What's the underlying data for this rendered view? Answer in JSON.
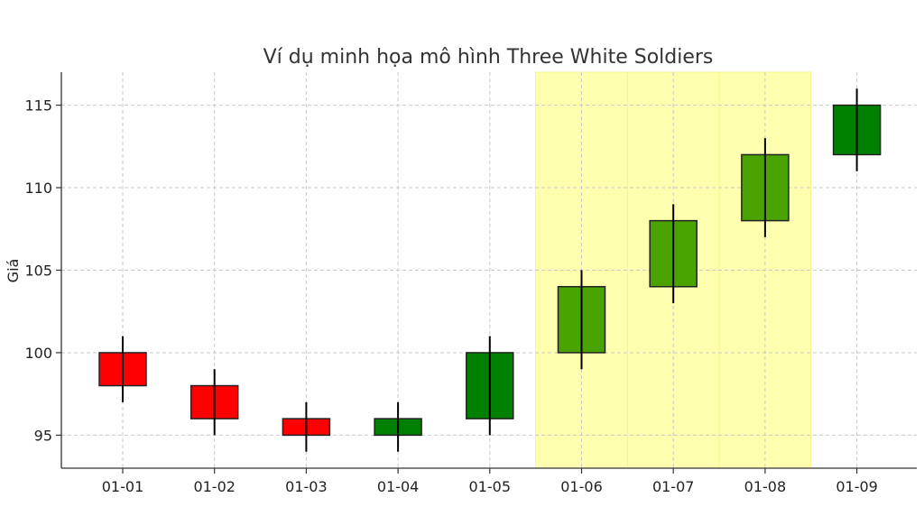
{
  "chart_data": {
    "type": "candlestick",
    "title": "Ví dụ minh họa mô hình Three White Soldiers",
    "xlabel": "",
    "ylabel": "Giá",
    "ylim": [
      93,
      117
    ],
    "yticks": [
      95,
      100,
      105,
      110,
      115
    ],
    "grid": true,
    "categories": [
      "01-01",
      "01-02",
      "01-03",
      "01-04",
      "01-05",
      "01-06",
      "01-07",
      "01-08",
      "01-09"
    ],
    "open": [
      100,
      98,
      96,
      95,
      96,
      100,
      104,
      108,
      112
    ],
    "close": [
      98,
      96,
      95,
      96,
      100,
      104,
      108,
      112,
      115
    ],
    "high": [
      101,
      99,
      97,
      97,
      101,
      105,
      109,
      113,
      116
    ],
    "low": [
      97,
      95,
      94,
      94,
      95,
      99,
      103,
      107,
      111
    ],
    "highlight_categories": [
      "01-06",
      "01-07",
      "01-08"
    ],
    "colors": {
      "up": "#008000",
      "down": "#ff0000",
      "highlighted_up": "#4aa300",
      "highlight_band": "#ffffb0"
    }
  }
}
